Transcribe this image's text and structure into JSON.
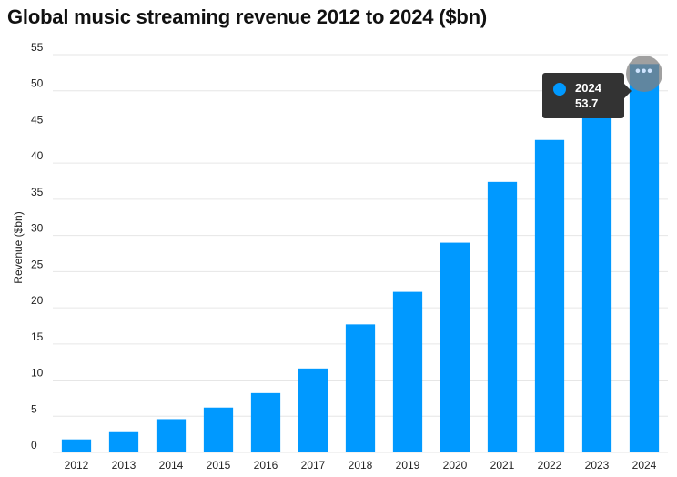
{
  "colors": {
    "bar": "#0099ff",
    "grid": "#e6e6e6",
    "tooltip_bg": "#333333"
  },
  "chart_data": {
    "type": "bar",
    "title": "Global music streaming revenue 2012 to 2024 ($bn)",
    "xlabel": "",
    "ylabel": "Revenue ($bn)",
    "ylim": [
      0,
      55
    ],
    "yticks": [
      0,
      5,
      10,
      15,
      20,
      25,
      30,
      35,
      40,
      45,
      50,
      55
    ],
    "grid": true,
    "categories": [
      "2012",
      "2013",
      "2014",
      "2015",
      "2016",
      "2017",
      "2018",
      "2019",
      "2020",
      "2021",
      "2022",
      "2023",
      "2024"
    ],
    "values": [
      1.8,
      2.8,
      4.6,
      6.2,
      8.2,
      11.6,
      17.7,
      22.2,
      29.0,
      37.4,
      43.2,
      47.5,
      53.7
    ],
    "tooltip": {
      "year": "2024",
      "value": "53.7"
    }
  },
  "more_button": {
    "icon": "more-dots-icon",
    "glyph": "•••"
  }
}
